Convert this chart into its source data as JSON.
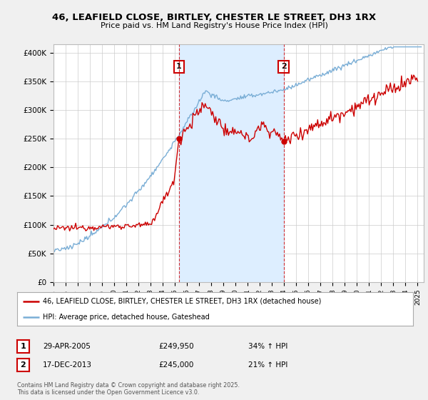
{
  "title1": "46, LEAFIELD CLOSE, BIRTLEY, CHESTER LE STREET, DH3 1RX",
  "title2": "Price paid vs. HM Land Registry's House Price Index (HPI)",
  "ylabel_ticks": [
    "£0",
    "£50K",
    "£100K",
    "£150K",
    "£200K",
    "£250K",
    "£300K",
    "£350K",
    "£400K"
  ],
  "ytick_values": [
    0,
    50000,
    100000,
    150000,
    200000,
    250000,
    300000,
    350000,
    400000
  ],
  "ylim": [
    0,
    415000
  ],
  "xlim_start": 1995.0,
  "xlim_end": 2025.5,
  "red_line_color": "#cc0000",
  "blue_line_color": "#7aaed6",
  "shade_color": "#ddeeff",
  "marker1_year": 2005.33,
  "marker1_value": 249950,
  "marker2_year": 2013.96,
  "marker2_value": 245000,
  "vline1_year": 2005.33,
  "vline2_year": 2013.96,
  "legend_label_red": "46, LEAFIELD CLOSE, BIRTLEY, CHESTER LE STREET, DH3 1RX (detached house)",
  "legend_label_blue": "HPI: Average price, detached house, Gateshead",
  "annotation1_date": "29-APR-2005",
  "annotation1_price": "£249,950",
  "annotation1_hpi": "34% ↑ HPI",
  "annotation2_date": "17-DEC-2013",
  "annotation2_price": "£245,000",
  "annotation2_hpi": "21% ↑ HPI",
  "footer": "Contains HM Land Registry data © Crown copyright and database right 2025.\nThis data is licensed under the Open Government Licence v3.0.",
  "background_color": "#f0f0f0",
  "plot_background": "#ffffff",
  "grid_color": "#cccccc"
}
